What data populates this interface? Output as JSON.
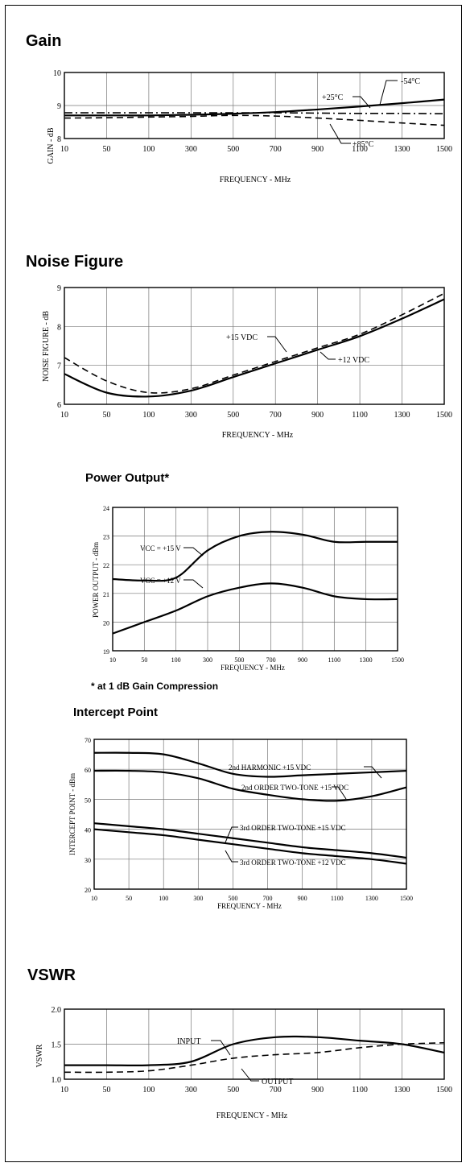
{
  "page": {
    "notes": {
      "compression": "* at 1 dB Gain Compression"
    }
  },
  "chart_data": [
    {
      "id": "gain",
      "type": "line",
      "title": "Gain",
      "xlabel": "FREQUENCY - MHz",
      "ylabel": "GAIN - dB",
      "categories": [
        "10",
        "50",
        "100",
        "300",
        "500",
        "700",
        "900",
        "1100",
        "1300",
        "1500"
      ],
      "ylim": [
        8,
        10
      ],
      "yticks": [
        8,
        9,
        10
      ],
      "ytick_labels": [
        "8",
        "9",
        "10"
      ],
      "grid": true,
      "series": [
        {
          "name": "+25°C",
          "style": "solid",
          "values": [
            8.7,
            8.7,
            8.7,
            8.72,
            8.75,
            8.8,
            8.88,
            8.97,
            9.07,
            9.18
          ]
        },
        {
          "name": "-54°C",
          "style": "dashdot",
          "values": [
            8.78,
            8.78,
            8.78,
            8.78,
            8.78,
            8.78,
            8.77,
            8.76,
            8.76,
            8.75
          ]
        },
        {
          "name": "+85°C",
          "style": "dashed",
          "values": [
            8.62,
            8.63,
            8.65,
            8.67,
            8.7,
            8.68,
            8.62,
            8.55,
            8.47,
            8.4
          ]
        }
      ]
    },
    {
      "id": "noise",
      "type": "line",
      "title": "Noise Figure",
      "xlabel": "FREQUENCY - MHz",
      "ylabel": "NOISE FIGURE - dB",
      "categories": [
        "10",
        "50",
        "100",
        "300",
        "500",
        "700",
        "900",
        "1100",
        "1300",
        "1500"
      ],
      "ylim": [
        6,
        9
      ],
      "yticks": [
        6,
        7,
        8,
        9
      ],
      "ytick_labels": [
        "6",
        "7",
        "8",
        "9"
      ],
      "grid": true,
      "series": [
        {
          "name": "+15 VDC",
          "style": "dashed",
          "values": [
            7.2,
            6.6,
            6.3,
            6.4,
            6.75,
            7.1,
            7.45,
            7.8,
            8.3,
            8.85
          ]
        },
        {
          "name": "+12 VDC",
          "style": "solid",
          "values": [
            6.78,
            6.3,
            6.2,
            6.35,
            6.7,
            7.05,
            7.4,
            7.75,
            8.2,
            8.7
          ]
        }
      ]
    },
    {
      "id": "power",
      "type": "line",
      "title": "Power Output*",
      "xlabel": "FREQUENCY - MHz",
      "ylabel": "POWER OUTPUT - dBm",
      "categories": [
        "10",
        "50",
        "100",
        "300",
        "500",
        "700",
        "900",
        "1100",
        "1300",
        "1500"
      ],
      "ylim": [
        19,
        24
      ],
      "yticks": [
        19,
        20,
        21,
        22,
        23,
        24
      ],
      "ytick_labels": [
        "19",
        "20",
        "21",
        "22",
        "23",
        "24"
      ],
      "grid": true,
      "series": [
        {
          "name": "VCC = +15 V",
          "style": "solid",
          "values": [
            21.5,
            21.45,
            21.55,
            22.5,
            23.0,
            23.15,
            23.05,
            22.8,
            22.8,
            22.8
          ]
        },
        {
          "name": "VCC = +12 V",
          "style": "solid",
          "values": [
            19.6,
            20.0,
            20.4,
            20.9,
            21.2,
            21.35,
            21.2,
            20.9,
            20.8,
            20.8
          ]
        }
      ]
    },
    {
      "id": "intercept",
      "type": "line",
      "title": "Intercept Point",
      "xlabel": "FREQUENCY - MHz",
      "ylabel": "INTERCEPT POINT - dBm",
      "categories": [
        "10",
        "50",
        "100",
        "300",
        "500",
        "700",
        "900",
        "1100",
        "1300",
        "1500"
      ],
      "ylim": [
        20,
        70
      ],
      "yticks": [
        20,
        30,
        40,
        50,
        60,
        70
      ],
      "ytick_labels": [
        "20",
        "30",
        "40",
        "50",
        "60",
        "70"
      ],
      "grid": true,
      "series": [
        {
          "name": "2nd HARMONIC +15 VDC",
          "style": "solid",
          "values": [
            65.5,
            65.5,
            65.0,
            62.0,
            58.5,
            57.5,
            58.0,
            58.5,
            59.0,
            59.5
          ]
        },
        {
          "name": "2nd ORDER TWO-TONE +15 VDC",
          "style": "solid",
          "values": [
            59.5,
            59.5,
            59.0,
            57.0,
            53.5,
            51.5,
            50.0,
            49.5,
            51.0,
            54.0
          ]
        },
        {
          "name": "3rd ORDER TWO-TONE +15 VDC",
          "style": "solid",
          "values": [
            42.0,
            41.0,
            40.0,
            38.5,
            37.0,
            35.5,
            34.0,
            33.0,
            32.0,
            30.5
          ]
        },
        {
          "name": "3rd ORDER TWO-TONE +12 VDC",
          "style": "solid",
          "values": [
            40.0,
            39.0,
            38.0,
            36.5,
            35.0,
            33.5,
            32.0,
            31.0,
            30.0,
            28.5
          ]
        }
      ]
    },
    {
      "id": "vswr",
      "type": "line",
      "title": "VSWR",
      "xlabel": "FREQUENCY - MHz",
      "ylabel": "VSWR",
      "categories": [
        "10",
        "50",
        "100",
        "300",
        "500",
        "700",
        "900",
        "1100",
        "1300",
        "1500"
      ],
      "ylim": [
        1.0,
        2.0
      ],
      "yticks": [
        1.0,
        1.5,
        2.0
      ],
      "ytick_labels": [
        "1.0",
        "1.5",
        "2.0"
      ],
      "grid": true,
      "series": [
        {
          "name": "INPUT",
          "style": "solid",
          "values": [
            1.2,
            1.2,
            1.2,
            1.25,
            1.5,
            1.6,
            1.6,
            1.55,
            1.5,
            1.38
          ]
        },
        {
          "name": "OUTPUT",
          "style": "dashed",
          "values": [
            1.1,
            1.1,
            1.12,
            1.2,
            1.3,
            1.35,
            1.38,
            1.45,
            1.5,
            1.52
          ]
        }
      ]
    }
  ]
}
